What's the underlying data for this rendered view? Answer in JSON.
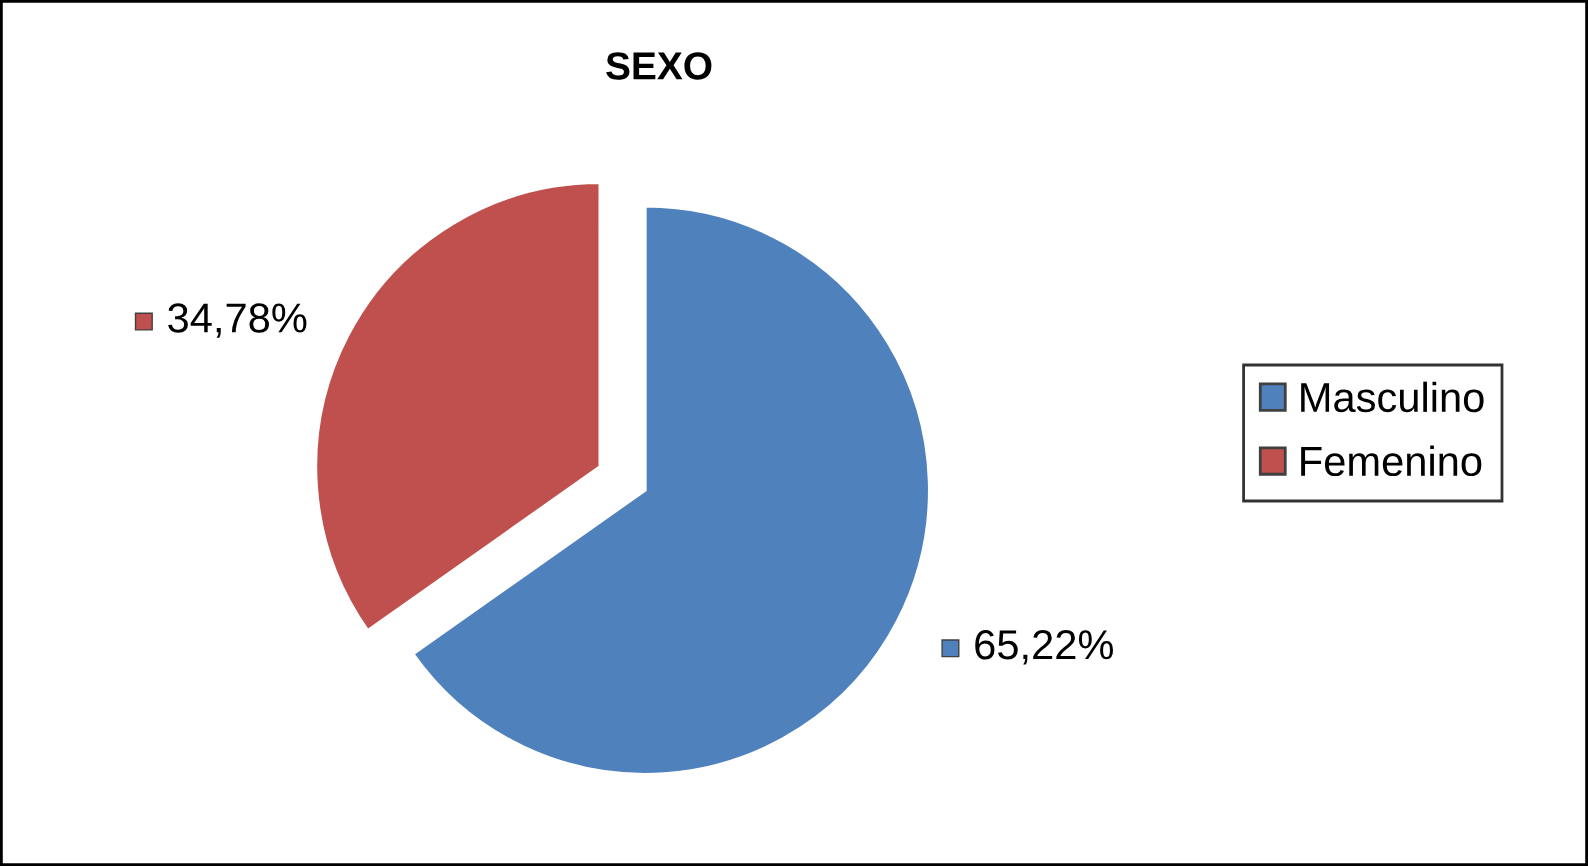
{
  "chart_data": {
    "type": "pie",
    "title": "SEXO",
    "categories": [
      "Masculino",
      "Femenino"
    ],
    "values": [
      65.22,
      34.78
    ],
    "colors": [
      "#4f81bd",
      "#c0504d"
    ],
    "value_labels": [
      "65,22%",
      "34,78%"
    ],
    "legend": "right"
  }
}
